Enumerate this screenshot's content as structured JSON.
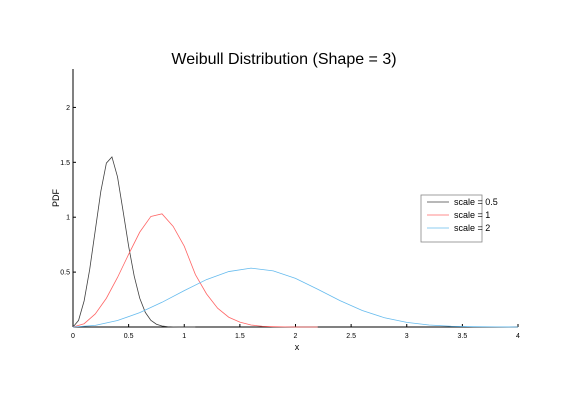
{
  "chart_data": {
    "type": "line",
    "title": "Weibull Distribution (Shape = 3)",
    "xlabel": "x",
    "ylabel": "PDF",
    "xlim": [
      0,
      4
    ],
    "ylim": [
      0,
      2.35
    ],
    "xticks": [
      {
        "value": 0,
        "label": "0"
      },
      {
        "value": 0.5,
        "label": "0.5"
      },
      {
        "value": 1,
        "label": "1"
      },
      {
        "value": 1.5,
        "label": "1.5"
      },
      {
        "value": 2,
        "label": "2"
      },
      {
        "value": 2.5,
        "label": "2.5"
      },
      {
        "value": 3,
        "label": "3"
      },
      {
        "value": 3.5,
        "label": "3.5"
      },
      {
        "value": 4,
        "label": "4"
      }
    ],
    "yticks": [
      {
        "value": 0.5,
        "label": "0.5"
      },
      {
        "value": 1,
        "label": "1"
      },
      {
        "value": 1.5,
        "label": "1.5"
      },
      {
        "value": 2,
        "label": "2"
      }
    ],
    "grid": false,
    "legend_position": "right",
    "series": [
      {
        "name": "scale = 0.5",
        "color": "#404040",
        "x": [
          0,
          0.05,
          0.1,
          0.15,
          0.2,
          0.25,
          0.3,
          0.35,
          0.4,
          0.45,
          0.5,
          0.55,
          0.6,
          0.65,
          0.7,
          0.75,
          0.8,
          0.85,
          0.9,
          0.95,
          1.0,
          1.05,
          1.1
        ],
        "y": [
          0,
          0.06,
          0.238,
          0.524,
          0.88,
          1.235,
          1.493,
          1.549,
          1.368,
          1.057,
          0.736,
          0.464,
          0.262,
          0.133,
          0.061,
          0.025,
          0.009,
          0.003,
          0.001,
          0.0,
          0.0,
          0.0,
          0.0
        ]
      },
      {
        "name": "scale = 1",
        "color": "#ff6666",
        "x": [
          0,
          0.1,
          0.2,
          0.3,
          0.4,
          0.5,
          0.6,
          0.7,
          0.8,
          0.9,
          1.0,
          1.1,
          1.2,
          1.3,
          1.4,
          1.5,
          1.6,
          1.7,
          1.8,
          1.9,
          2.0,
          2.1,
          2.2
        ],
        "y": [
          0,
          0.03,
          0.119,
          0.262,
          0.451,
          0.662,
          0.864,
          1.007,
          1.031,
          0.917,
          0.736,
          0.478,
          0.302,
          0.171,
          0.089,
          0.044,
          0.018,
          0.007,
          0.003,
          0.001,
          0.0,
          0.0,
          0.0
        ]
      },
      {
        "name": "scale = 2",
        "color": "#66bbee",
        "x": [
          0,
          0.2,
          0.4,
          0.6,
          0.8,
          1.0,
          1.2,
          1.4,
          1.6,
          1.8,
          2.0,
          2.2,
          2.4,
          2.6,
          2.8,
          3.0,
          3.2,
          3.4,
          3.6,
          3.8,
          4.0
        ],
        "y": [
          0,
          0.015,
          0.059,
          0.131,
          0.225,
          0.331,
          0.432,
          0.505,
          0.536,
          0.511,
          0.443,
          0.344,
          0.24,
          0.15,
          0.084,
          0.042,
          0.018,
          0.007,
          0.003,
          0.001,
          0.0
        ]
      }
    ]
  }
}
